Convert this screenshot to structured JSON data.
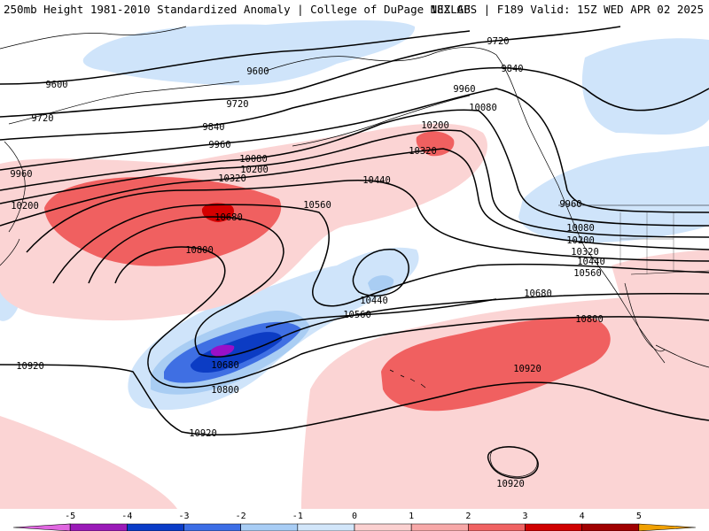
{
  "header": {
    "title_left": "250mb Height 1981-2010 Standardized Anomaly | College of DuPage NEXLAB",
    "title_right": "18Z GFS | F189 Valid: 15Z WED APR 02 2025"
  },
  "contour_labels": [
    "9600",
    "9600",
    "9720",
    "9720",
    "9720",
    "9840",
    "9840",
    "9960",
    "9960",
    "9960",
    "9960",
    "10080",
    "10080",
    "10080",
    "10200",
    "10200",
    "10200",
    "10200",
    "10320",
    "10320",
    "10320",
    "10440",
    "10440",
    "10440",
    "10560",
    "10560",
    "10560",
    "10680",
    "10680",
    "10680",
    "10800",
    "10800",
    "10800",
    "10920",
    "10920",
    "10920",
    "10920"
  ],
  "colorbar": {
    "ticks": [
      "-5",
      "-4",
      "-3",
      "-2",
      "-1",
      "0",
      "1",
      "2",
      "3",
      "4",
      "5"
    ],
    "colors": [
      "#e066e0",
      "#9a1ab8",
      "#0a3cc8",
      "#3c6ee6",
      "#a8cdf5",
      "#d2e6fa",
      "#fbd0d0",
      "#f7a8a8",
      "#f06262",
      "#d00000",
      "#a00000",
      "#f0a000"
    ]
  },
  "anomaly_colors": {
    "neg1": "#cfe4fa",
    "neg2": "#a9cdf3",
    "neg3": "#3f6fe3",
    "neg4": "#0c3cc4",
    "neg5": "#9a10c8",
    "pos1": "#fbd4d4",
    "pos2": "#f49595",
    "pos3": "#f06060",
    "pos4": "#d40000"
  }
}
